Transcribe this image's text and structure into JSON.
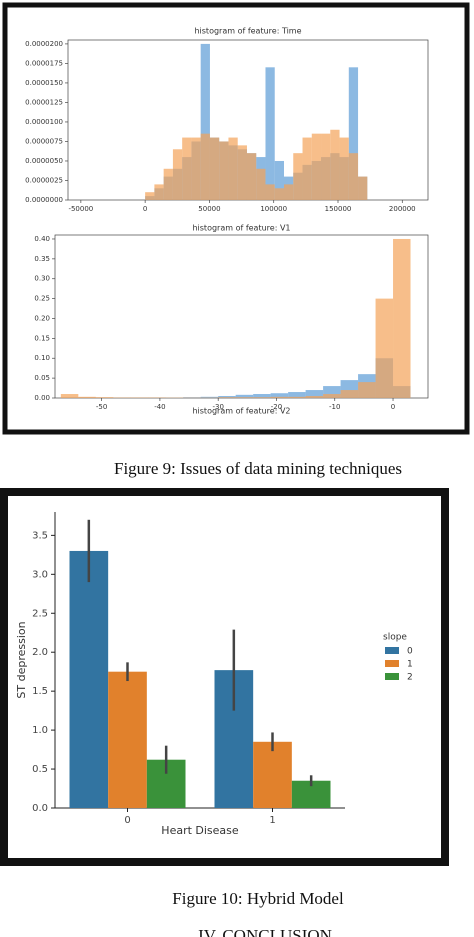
{
  "chart_data": [
    {
      "type": "histogram",
      "title": "histogram of feature: Time",
      "bins": [
        0,
        7200,
        14400,
        21600,
        28800,
        36000,
        43200,
        50400,
        57600,
        64800,
        72000,
        79200,
        86400,
        93600,
        100800,
        108000,
        115200,
        122400,
        129600,
        136800,
        144000,
        151200,
        158400,
        165600,
        172800
      ],
      "series": [
        {
          "color": "#5b9bd5",
          "values": [
            5e-07,
            1.5e-06,
            3e-06,
            4e-06,
            5.5e-06,
            7.5e-06,
            2e-05,
            8e-06,
            7.5e-06,
            7e-06,
            6.5e-06,
            6e-06,
            5.5e-06,
            1.7e-05,
            5e-06,
            3e-06,
            3.5e-06,
            4.5e-06,
            5e-06,
            5.5e-06,
            6e-06,
            5.5e-06,
            1.7e-05,
            3e-06
          ]
        },
        {
          "color": "#f4a259",
          "values": [
            1e-06,
            2e-06,
            4e-06,
            6.5e-06,
            8e-06,
            8e-06,
            8.5e-06,
            8e-06,
            7.5e-06,
            8e-06,
            7e-06,
            6e-06,
            4e-06,
            2e-06,
            1.5e-06,
            2e-06,
            6e-06,
            8e-06,
            8.5e-06,
            8.5e-06,
            9e-06,
            8e-06,
            6e-06,
            3e-06
          ]
        }
      ],
      "xlim": [
        -60000,
        220000
      ],
      "xticks": [
        -50000,
        0,
        50000,
        100000,
        150000,
        200000
      ],
      "ylim": [
        0,
        2.05e-05
      ],
      "yticks": [
        {
          "value": 0,
          "label": "0.0000000"
        },
        {
          "value": 2.5e-06,
          "label": "0.0000025"
        },
        {
          "value": 5e-06,
          "label": "0.0000050"
        },
        {
          "value": 7.5e-06,
          "label": "0.0000075"
        },
        {
          "value": 1e-05,
          "label": "0.0000100"
        },
        {
          "value": 1.25e-05,
          "label": "0.0000125"
        },
        {
          "value": 1.5e-05,
          "label": "0.0000150"
        },
        {
          "value": 1.75e-05,
          "label": "0.0000175"
        },
        {
          "value": 2e-05,
          "label": "0.0000200"
        }
      ]
    },
    {
      "type": "histogram",
      "title": "histogram of feature: V1",
      "bins": [
        -57,
        -54,
        -51,
        -48,
        -45,
        -42,
        -39,
        -36,
        -33,
        -30,
        -27,
        -24,
        -21,
        -18,
        -15,
        -12,
        -9,
        -6,
        -3,
        0,
        3
      ],
      "series": [
        {
          "color": "#5b9bd5",
          "values": [
            0,
            0,
            0,
            0,
            0,
            0,
            0.001,
            0.002,
            0.003,
            0.005,
            0.008,
            0.01,
            0.012,
            0.015,
            0.02,
            0.03,
            0.045,
            0.06,
            0.1,
            0.03
          ]
        },
        {
          "color": "#f4a259",
          "values": [
            0.01,
            0.003,
            0.002,
            0.001,
            0.001,
            0.001,
            0.001,
            0.001,
            0.001,
            0.002,
            0.002,
            0.002,
            0.003,
            0.003,
            0.005,
            0.01,
            0.02,
            0.04,
            0.25,
            0.4
          ]
        }
      ],
      "xlim": [
        -58,
        6
      ],
      "xticks": [
        -50,
        -40,
        -30,
        -20,
        -10,
        0
      ],
      "ylim": [
        0,
        0.41
      ],
      "yticks": [
        {
          "value": 0,
          "label": "0.00"
        },
        {
          "value": 0.05,
          "label": "0.05"
        },
        {
          "value": 0.1,
          "label": "0.10"
        },
        0.15,
        {
          "value": 0.2,
          "label": "0.20"
        },
        0.25,
        {
          "value": 0.3,
          "label": "0.30"
        },
        0.35,
        {
          "value": 0.4,
          "label": "0.40"
        }
      ],
      "next_title": "histogram of feature: V2"
    },
    {
      "type": "bar",
      "x_label": "Heart Disease",
      "y_label": "ST depression",
      "legend_title": "slope",
      "categories": [
        "0",
        "1"
      ],
      "series": [
        {
          "name": "0",
          "color": "#3274a1",
          "values": [
            3.3,
            1.77
          ],
          "errors": [
            0.4,
            0.52
          ]
        },
        {
          "name": "1",
          "color": "#e1812c",
          "values": [
            1.75,
            0.85
          ],
          "errors": [
            0.12,
            0.12
          ]
        },
        {
          "name": "2",
          "color": "#3a923a",
          "values": [
            0.62,
            0.35
          ],
          "errors": [
            0.18,
            0.07
          ]
        }
      ],
      "ylim": [
        0,
        3.8
      ],
      "yticks": [
        {
          "value": 0,
          "label": "0.0"
        },
        0.5,
        {
          "value": 1,
          "label": "1.0"
        },
        1.5,
        {
          "value": 2,
          "label": "2.0"
        },
        2.5,
        {
          "value": 3,
          "label": "3.0"
        },
        3.5
      ]
    }
  ],
  "captions": [
    "Figure 9: Issues of data mining techniques",
    "Figure 10: Hybrid Model"
  ],
  "heading": "IV.    CONCLUSION"
}
